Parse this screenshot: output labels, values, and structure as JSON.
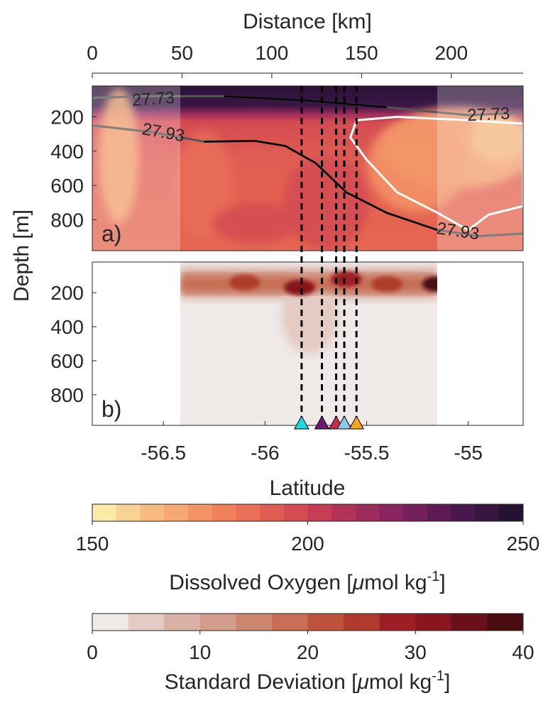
{
  "chart_data": [
    {
      "type": "heatmap",
      "panel_label": "a)",
      "top_axis": {
        "label": "Distance [km]",
        "ticks": [
          "0",
          "50",
          "100",
          "150",
          "200"
        ],
        "range": [
          0,
          240
        ]
      },
      "ylabel": "Depth [m]",
      "yticks": [
        "200",
        "400",
        "600",
        "800"
      ],
      "ylim": [
        980,
        20
      ],
      "xlim": [
        -56.85,
        -54.73
      ],
      "variable": "Dissolved Oxygen",
      "shaded_outside_range": [
        -56.42,
        -55.12
      ],
      "isopycnals": [
        {
          "label": "27.73",
          "points": [
            [
              -56.85,
              90
            ],
            [
              -56.6,
              80
            ],
            [
              -56.2,
              80
            ],
            [
              -55.8,
              105
            ],
            [
              -55.4,
              145
            ],
            [
              -55.0,
              190
            ],
            [
              -54.73,
              175
            ]
          ]
        },
        {
          "label": "27.93",
          "points": [
            [
              -56.85,
              250
            ],
            [
              -56.55,
              290
            ],
            [
              -56.3,
              345
            ],
            [
              -56.05,
              340
            ],
            [
              -55.9,
              370
            ],
            [
              -55.75,
              470
            ],
            [
              -55.6,
              640
            ],
            [
              -55.4,
              760
            ],
            [
              -55.15,
              860
            ],
            [
              -54.95,
              895
            ],
            [
              -54.73,
              880
            ]
          ]
        }
      ],
      "white_contour_points": [
        [
          -55.55,
          220
        ],
        [
          -55.35,
          200
        ],
        [
          -55.0,
          220
        ],
        [
          -54.73,
          240
        ],
        [
          -54.73,
          720
        ],
        [
          -54.9,
          770
        ],
        [
          -55.0,
          860
        ],
        [
          -55.15,
          760
        ],
        [
          -55.35,
          640
        ],
        [
          -55.5,
          450
        ],
        [
          -55.58,
          320
        ],
        [
          -55.55,
          220
        ]
      ],
      "reference_lines_lat": [
        -55.82,
        -55.72,
        -55.65,
        -55.61,
        -55.55
      ]
    },
    {
      "type": "heatmap",
      "panel_label": "b)",
      "xlabel": "Latitude",
      "xticks": [
        "-56.5",
        "-56",
        "-55.5",
        "-55"
      ],
      "xtick_values": [
        -56.5,
        -56.0,
        -55.5,
        -55.0
      ],
      "ylabel": "Depth [m]",
      "yticks": [
        "200",
        "400",
        "600",
        "800"
      ],
      "ylim": [
        980,
        20
      ],
      "variable": "Standard Deviation",
      "data_range_lat": [
        -56.42,
        -55.12
      ],
      "high_std_blobs": [
        {
          "lat": -55.83,
          "depth": 170,
          "value": 32
        },
        {
          "lat": -55.6,
          "depth": 120,
          "value": 28
        },
        {
          "lat": -55.15,
          "depth": 150,
          "value": 38
        },
        {
          "lat": -56.1,
          "depth": 140,
          "value": 24
        },
        {
          "lat": -55.4,
          "depth": 150,
          "value": 26
        }
      ],
      "station_markers": [
        {
          "lat": -55.82,
          "color": "#22d8e0"
        },
        {
          "lat": -55.72,
          "color": "#6e1a6e"
        },
        {
          "lat": -55.65,
          "color": "#cc2a48"
        },
        {
          "lat": -55.61,
          "color": "#8ec9ea"
        },
        {
          "lat": -55.55,
          "color": "#f5a623"
        }
      ]
    },
    {
      "type": "colorbar",
      "label": "Dissolved Oxygen [µmol kg-1]",
      "ticks": [
        "150",
        "200",
        "250"
      ],
      "range": [
        150,
        250
      ],
      "colors": [
        "#fbeaa6",
        "#f9d192",
        "#f7bb80",
        "#f6a872",
        "#f39466",
        "#ef815d",
        "#e96f57",
        "#e05d53",
        "#d44b52",
        "#c43d55",
        "#b13458",
        "#9c2c5b",
        "#87255c",
        "#721f5a",
        "#5c1b55",
        "#48184c",
        "#36153f",
        "#251130"
      ]
    },
    {
      "type": "colorbar",
      "label": "Standard Deviation [µmol kg-1]",
      "ticks": [
        "0",
        "10",
        "20",
        "30",
        "40"
      ],
      "range": [
        0,
        40
      ],
      "colors": [
        "#efe9e8",
        "#e4cbc3",
        "#d9b2a6",
        "#d29d8c",
        "#cc8672",
        "#c76e55",
        "#bd533a",
        "#ae3c2c",
        "#9e1e26",
        "#87161f",
        "#69101a",
        "#4a0d12"
      ]
    }
  ]
}
